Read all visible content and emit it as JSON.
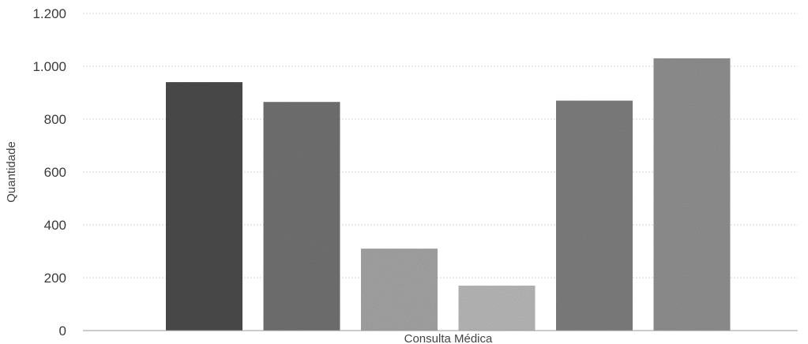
{
  "chart_data": {
    "type": "bar",
    "categories": [
      "",
      "",
      "",
      "",
      "",
      ""
    ],
    "values": [
      940,
      865,
      310,
      170,
      870,
      1030
    ],
    "xlabel": "Consulta Médica",
    "ylabel": "Quantidade",
    "ylim": [
      0,
      1200
    ],
    "yticks": [
      0,
      200,
      400,
      600,
      800,
      1000,
      1200
    ],
    "ytick_labels": [
      "0",
      "200",
      "400",
      "600",
      "800",
      "1.000",
      "1.200"
    ],
    "grid": true,
    "legend": "none",
    "bar_colors": [
      "#4a4a4a",
      "#707070",
      "#a2a2a2",
      "#b5b5b5",
      "#7c7c7c",
      "#8e8e8e"
    ]
  }
}
